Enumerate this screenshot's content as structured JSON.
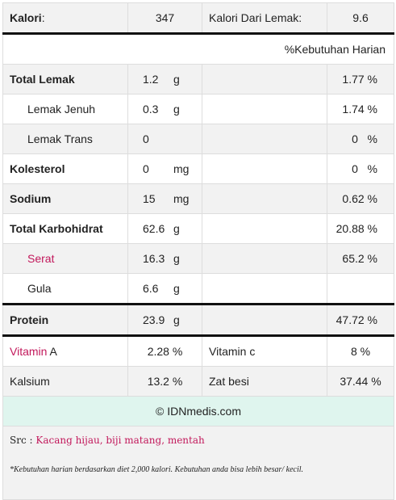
{
  "top": {
    "kalori_label": "Kalori",
    "kalori_colon": ":",
    "kalori_value": "347",
    "lemak_label": "Kalori Dari Lemak:",
    "lemak_value": "9.6"
  },
  "daily_header": "%Kebutuhan Harian",
  "nutrients": {
    "total_lemak": {
      "label": "Total Lemak",
      "amount": "1.2",
      "unit": "g",
      "dv": "1.77 %"
    },
    "lemak_jenuh": {
      "label": "Lemak Jenuh",
      "amount": "0.3",
      "unit": "g",
      "dv": "1.74 %"
    },
    "lemak_trans": {
      "label": "Lemak Trans",
      "amount": "0",
      "unit": "",
      "dv": "0   %"
    },
    "kolesterol": {
      "label": "Kolesterol",
      "amount": "0",
      "unit": "mg",
      "dv": "0   %"
    },
    "sodium": {
      "label": "Sodium",
      "amount": "15",
      "unit": "mg",
      "dv": "0.62 %"
    },
    "total_karbohidrat": {
      "label": "Total Karbohidrat",
      "amount": "62.6",
      "unit": "g",
      "dv": "20.88 %"
    },
    "serat": {
      "label": "Serat",
      "amount": "16.3",
      "unit": "g",
      "dv": "65.2 %"
    },
    "gula": {
      "label": "Gula",
      "amount": "6.6",
      "unit": "g",
      "dv": ""
    },
    "protein": {
      "label": "Protein",
      "amount": "23.9",
      "unit": "g",
      "dv": "47.72 %"
    }
  },
  "vitamins": {
    "vitamin_a_label_1": "Vitamin",
    "vitamin_a_label_2": " A",
    "vitamin_a_value": "2.28 %",
    "vitamin_c_label": "Vitamin c",
    "vitamin_c_value": "8 %",
    "kalsium_label": "Kalsium",
    "kalsium_value": "13.2 %",
    "zat_besi_label": "Zat besi",
    "zat_besi_value": "37.44 %"
  },
  "footer": {
    "brand": "© IDNmedis.com",
    "src_label": "Src : ",
    "src_link": "Kacang hijau, biji matang, mentah",
    "note": "*Kebutuhan harian berdasarkan diet 2,000 kalori. Kebutuhan anda bisa lebih besar/ kecil."
  },
  "colors": {
    "accent": "#c2185b",
    "row_alt": "#f2f2f2",
    "brand_bg": "#dff5ee"
  }
}
